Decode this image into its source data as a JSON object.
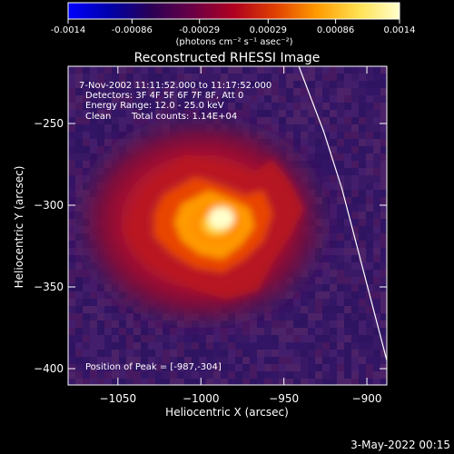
{
  "colorbar": {
    "ticks": [
      "-0.0014",
      "-0.00086",
      "-0.00029",
      "0.00029",
      "0.00086",
      "0.0014"
    ],
    "tick_values": [
      -0.0014,
      -0.00086,
      -0.00029,
      0.00029,
      0.00086,
      0.0014
    ],
    "range": [
      -0.0014,
      0.0014
    ],
    "unit_label": "(photons cm⁻² s⁻¹ asec⁻²)",
    "colors": [
      "#0000ff",
      "#0000aa",
      "#2a0055",
      "#6a0046",
      "#b00020",
      "#e04000",
      "#ff9a00",
      "#ffe050",
      "#ffffcc"
    ]
  },
  "chart_data": {
    "type": "heatmap",
    "title": "Reconstructed RHESSI Image",
    "xlabel": "Heliocentric X (arcsec)",
    "ylabel": "Heliocentric Y (arcsec)",
    "xlim": [
      -1080,
      -888
    ],
    "ylim": [
      -410,
      -215
    ],
    "x_ticks": [
      {
        "value": -1050,
        "label": "−1050"
      },
      {
        "value": -1000,
        "label": "−1000"
      },
      {
        "value": -950,
        "label": "−950"
      },
      {
        "value": -900,
        "label": "−900"
      }
    ],
    "y_ticks": [
      {
        "value": -250,
        "label": "−250"
      },
      {
        "value": -300,
        "label": "−300"
      },
      {
        "value": -350,
        "label": "−350"
      },
      {
        "value": -400,
        "label": "−400"
      }
    ],
    "annotations": [
      "7-Nov-2002 11:11:52.000 to 11:17:52.000",
      "Detectors: 3F 4F 5F 6F 7F 8F, Att 0",
      "Energy Range: 12.0 - 25.0 keV",
      "Clean",
      "Total counts: 1.14E+04"
    ],
    "peak_label": "Position of Peak = [-987,-304]",
    "peak": {
      "x": -987,
      "y": -304
    },
    "limb_line": {
      "points": [
        [
          -941,
          -215
        ],
        [
          -926,
          -255
        ],
        [
          -915,
          -290
        ],
        [
          -906,
          -325
        ],
        [
          -897,
          -360
        ],
        [
          -888,
          -395
        ]
      ],
      "color": "#ffffff"
    },
    "background_color": "#3a1a66",
    "grid": false
  },
  "footer": {
    "timestamp": "3-May-2022 00:15"
  }
}
